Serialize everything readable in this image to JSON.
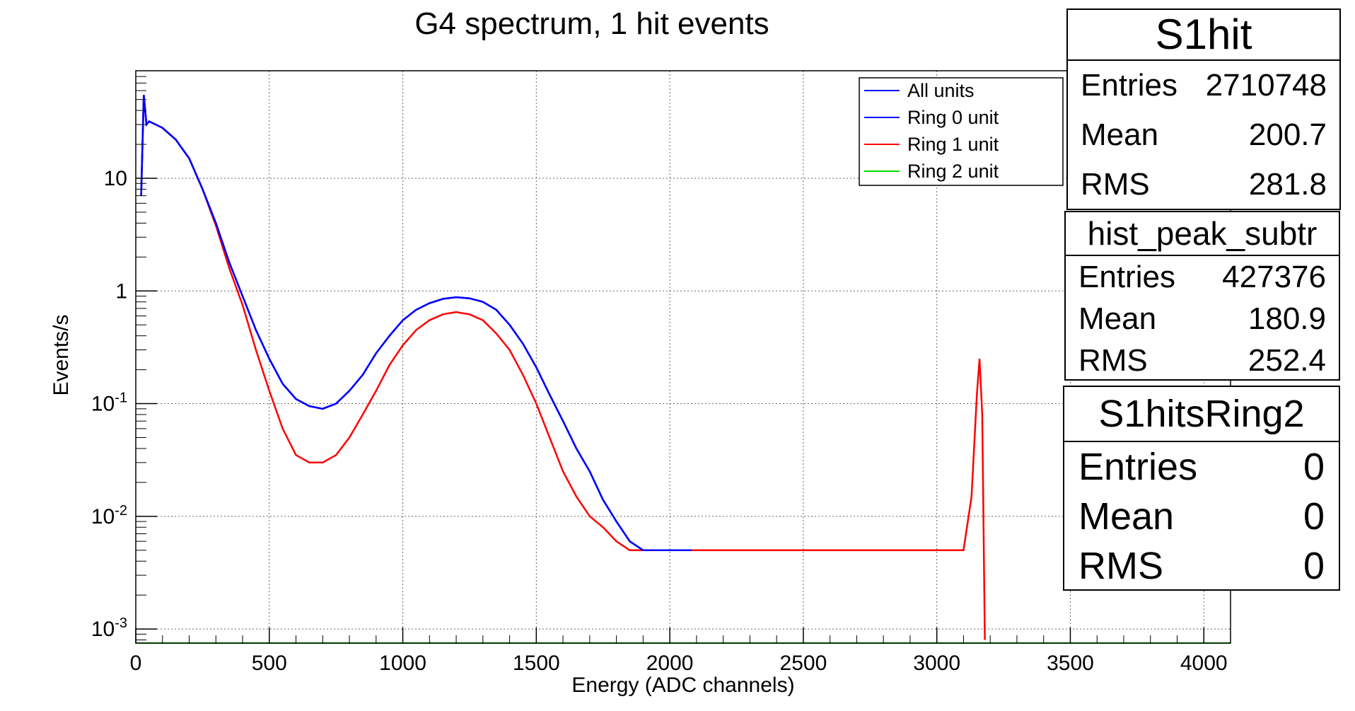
{
  "chart_data": {
    "type": "line",
    "title": "G4 spectrum, 1 hit events",
    "xlabel": "Energy (ADC channels)",
    "ylabel": "Events/s",
    "xlim": [
      0,
      4100
    ],
    "ylim": [
      0.00075,
      90
    ],
    "yscale": "log",
    "grid": true,
    "legend_position": "top-right",
    "x_ticks": [
      0,
      500,
      1000,
      1500,
      2000,
      2500,
      3000,
      3500,
      4000
    ],
    "y_ticks": [
      {
        "value": 0.001,
        "base": "10",
        "exp": "-3"
      },
      {
        "value": 0.01,
        "base": "10",
        "exp": "-2"
      },
      {
        "value": 0.1,
        "base": "10",
        "exp": "-1"
      },
      {
        "value": 1,
        "base": "1",
        "exp": ""
      },
      {
        "value": 10,
        "base": "10",
        "exp": ""
      }
    ],
    "series": [
      {
        "name": "All units",
        "color": "#0000ff",
        "x": [
          20,
          30,
          40,
          50,
          100,
          150,
          200,
          250,
          300,
          350,
          400,
          450,
          500,
          550,
          600,
          650,
          700,
          750,
          800,
          850,
          900,
          950,
          1000,
          1050,
          1100,
          1150,
          1200,
          1250,
          1300,
          1350,
          1400,
          1450,
          1500,
          1550,
          1600,
          1650,
          1700,
          1750,
          1800,
          1850,
          1900,
          1950,
          2000,
          2050,
          2080
        ],
        "y": [
          7,
          55,
          30,
          32,
          28,
          22,
          15,
          8,
          4,
          1.8,
          0.9,
          0.45,
          0.25,
          0.15,
          0.11,
          0.095,
          0.09,
          0.1,
          0.13,
          0.18,
          0.28,
          0.4,
          0.55,
          0.68,
          0.78,
          0.85,
          0.88,
          0.86,
          0.8,
          0.68,
          0.5,
          0.34,
          0.21,
          0.12,
          0.07,
          0.04,
          0.025,
          0.014,
          0.009,
          0.006,
          0.005,
          0.005,
          0.005,
          0.005,
          0.005
        ]
      },
      {
        "name": "Ring 0 unit",
        "color": "#0000ff",
        "x": [
          20,
          30,
          40,
          50,
          100,
          150,
          200,
          250,
          300,
          350,
          400,
          450,
          500,
          550,
          600,
          650,
          700,
          750,
          800,
          850,
          900,
          950,
          1000,
          1050,
          1100,
          1150,
          1200,
          1250,
          1300,
          1350,
          1400,
          1450,
          1500,
          1550,
          1600,
          1650,
          1700,
          1750,
          1800,
          1850,
          1900,
          1950,
          2000,
          2050,
          2080
        ],
        "y": [
          7,
          55,
          30,
          32,
          28,
          22,
          15,
          8,
          4,
          1.8,
          0.9,
          0.45,
          0.25,
          0.15,
          0.11,
          0.095,
          0.09,
          0.1,
          0.13,
          0.18,
          0.28,
          0.4,
          0.55,
          0.68,
          0.78,
          0.85,
          0.88,
          0.86,
          0.8,
          0.68,
          0.5,
          0.34,
          0.21,
          0.12,
          0.07,
          0.04,
          0.025,
          0.014,
          0.009,
          0.006,
          0.005,
          0.005,
          0.005,
          0.005,
          0.005
        ]
      },
      {
        "name": "Ring 1 unit",
        "color": "#ff0000",
        "x": [
          20,
          30,
          40,
          50,
          100,
          150,
          200,
          250,
          300,
          350,
          400,
          450,
          500,
          550,
          600,
          650,
          700,
          750,
          800,
          850,
          900,
          950,
          1000,
          1050,
          1100,
          1150,
          1200,
          1250,
          1300,
          1350,
          1400,
          1450,
          1500,
          1550,
          1600,
          1650,
          1700,
          1750,
          1800,
          1850,
          1900,
          1950,
          2000,
          2500,
          3000,
          3100,
          3130,
          3150,
          3160,
          3170,
          3180
        ],
        "y": [
          7,
          55,
          30,
          32,
          28,
          22,
          15,
          8,
          3.8,
          1.6,
          0.75,
          0.3,
          0.13,
          0.06,
          0.035,
          0.03,
          0.03,
          0.035,
          0.05,
          0.08,
          0.13,
          0.22,
          0.33,
          0.45,
          0.55,
          0.62,
          0.65,
          0.62,
          0.55,
          0.42,
          0.3,
          0.18,
          0.1,
          0.05,
          0.025,
          0.015,
          0.01,
          0.008,
          0.006,
          0.005,
          0.005,
          0.005,
          0.005,
          0.005,
          0.005,
          0.005,
          0.015,
          0.12,
          0.25,
          0.08,
          0.0008
        ]
      },
      {
        "name": "Ring 2 unit",
        "color": "#00dd00",
        "x": [
          0,
          4100
        ],
        "y": [
          0.00075,
          0.00075
        ]
      }
    ]
  },
  "stats": [
    {
      "title": "S1hit",
      "rows": [
        {
          "label": "Entries",
          "value": "2710748"
        },
        {
          "label": "Mean",
          "value": "200.7"
        },
        {
          "label": "RMS",
          "value": "281.8"
        }
      ]
    },
    {
      "title": "hist_peak_subtr",
      "rows": [
        {
          "label": "Entries",
          "value": "427376"
        },
        {
          "label": "Mean",
          "value": "180.9"
        },
        {
          "label": "RMS",
          "value": "252.4"
        }
      ]
    },
    {
      "title": "S1hitsRing2",
      "rows": [
        {
          "label": "Entries",
          "value": "0"
        },
        {
          "label": "Mean",
          "value": "0"
        },
        {
          "label": "RMS",
          "value": "0"
        }
      ]
    }
  ]
}
